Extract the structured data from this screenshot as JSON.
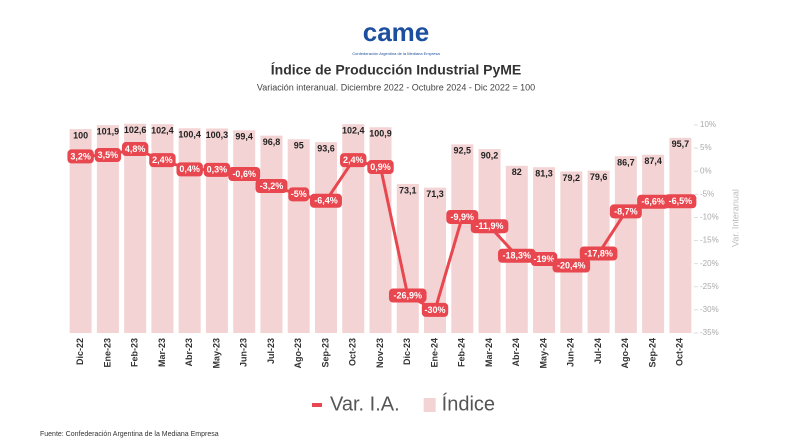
{
  "logo": "came",
  "logo_subtitle": "Confederación Argentina de la Mediana Empresa",
  "source": "Fuente: Confederación Argentina de la Mediana Empresa",
  "chart_data": {
    "type": "combo",
    "title": "Índice de Producción Industrial PyME",
    "subtitle": "Variación interanual. Diciembre 2022 - Octubre 2024 - Dic 2022 = 100",
    "y2_label": "Var. Interanual",
    "categories": [
      "Dic-22",
      "Ene-23",
      "Feb-23",
      "Mar-23",
      "Abr-23",
      "May-23",
      "Jun-23",
      "Jul-23",
      "Ago-23",
      "Sep-23",
      "Oct-23",
      "Nov-23",
      "Dic-23",
      "Ene-24",
      "Feb-24",
      "Mar-24",
      "Abr-24",
      "May-24",
      "Jun-24",
      "Jul-24",
      "Ago-24",
      "Sep-24",
      "Oct-24"
    ],
    "ylim": [
      0,
      102
    ],
    "y2lim": [
      -35,
      10
    ],
    "y2ticks": [
      {
        "value": 10,
        "label": "10%"
      },
      {
        "value": 5,
        "label": "5%"
      },
      {
        "value": 0,
        "label": "0%"
      },
      {
        "value": -5,
        "label": "-5%"
      },
      {
        "value": -10,
        "label": "-10%"
      },
      {
        "value": -15,
        "label": "-15%"
      },
      {
        "value": -20,
        "label": "-20%"
      },
      {
        "value": -25,
        "label": "-25%"
      },
      {
        "value": -30,
        "label": "-30%"
      },
      {
        "value": -35,
        "label": "-35%"
      }
    ],
    "grid": false,
    "legend": "bottom",
    "series": [
      {
        "name": "Var. I.A.",
        "type": "line",
        "axis": "y2",
        "color": "#e8474f",
        "values": [
          3.2,
          3.5,
          4.8,
          2.4,
          0.4,
          0.3,
          -0.6,
          -3.2,
          -5,
          -6.4,
          2.4,
          0.9,
          -26.9,
          -30,
          -9.9,
          -11.9,
          -18.3,
          -19,
          -20.4,
          -17.8,
          -8.7,
          -6.6,
          -6.5
        ],
        "value_labels": [
          "3,2%",
          "3,5%",
          "4,8%",
          "2,4%",
          "0,4%",
          "0,3%",
          "-0,6%",
          "-3,2%",
          "-5%",
          "-6,4%",
          "2,4%",
          "0,9%",
          "-26,9%",
          "-30%",
          "-9,9%",
          "-11,9%",
          "-18,3%",
          "-19%",
          "-20,4%",
          "-17,8%",
          "-8,7%",
          "-6,6%",
          "-6,5%"
        ]
      },
      {
        "name": "Índice",
        "type": "bar",
        "color": "#f3d3d3",
        "values": [
          100,
          101.9,
          102.6,
          102.4,
          100.4,
          100.3,
          99.4,
          96.8,
          95,
          93.6,
          102.4,
          100.9,
          73.1,
          71.3,
          92.5,
          90.2,
          82,
          81.3,
          79.2,
          79.6,
          86.7,
          87.4,
          95.7
        ],
        "value_labels": [
          "100",
          "101,9",
          "102,6",
          "102,4",
          "100,4",
          "100,3",
          "99,4",
          "96,8",
          "95",
          "93,6",
          "102,4",
          "100,9",
          "73,1",
          "71,3",
          "92,5",
          "90,2",
          "82",
          "81,3",
          "79,2",
          "79,6",
          "86,7",
          "87,4",
          "95,7"
        ]
      }
    ]
  }
}
